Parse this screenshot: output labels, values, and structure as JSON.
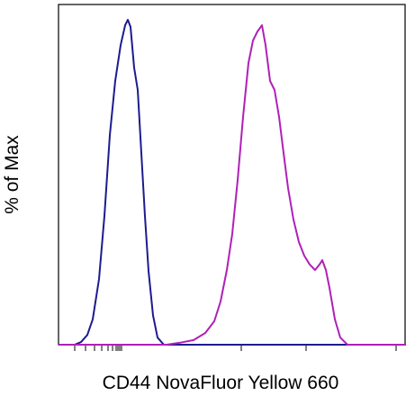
{
  "chart_data": {
    "type": "line",
    "xlabel": "CD44 NovaFluor Yellow 660",
    "ylabel": "% of Max",
    "xlim": [
      0,
      386
    ],
    "ylim": [
      0,
      100
    ],
    "xticks": [
      18,
      30,
      40,
      48,
      55,
      60,
      64,
      66,
      68,
      70,
      203,
      275,
      375
    ],
    "series": [
      {
        "color": "#1c1c8f",
        "x": [
          0,
          18,
          25,
          32,
          38,
          45,
          51,
          57,
          63,
          69,
          74,
          77,
          80,
          84,
          88,
          92,
          96,
          100,
          105,
          110,
          117,
          386
        ],
        "values": [
          0,
          0,
          0.8,
          3,
          7.8,
          20.2,
          39.6,
          64.5,
          81.2,
          92.2,
          98.3,
          100,
          97.8,
          85.3,
          78.4,
          59,
          39.6,
          22.7,
          9,
          2.2,
          0,
          0
        ]
      },
      {
        "color": "#b020b8",
        "x": [
          0,
          120,
          135,
          150,
          163,
          173,
          180,
          187,
          193,
          199,
          205,
          211,
          216,
          221,
          226,
          230,
          235,
          240,
          245,
          250,
          255,
          261,
          267,
          273,
          279,
          285,
          290,
          293,
          297,
          301,
          307,
          313,
          321,
          386
        ],
        "values": [
          0,
          0,
          0.6,
          1.4,
          3.6,
          7.2,
          13.3,
          23,
          34.1,
          50.7,
          70.1,
          86.7,
          93.6,
          96.4,
          98.3,
          92.2,
          81.2,
          78.4,
          70.1,
          59,
          48.2,
          38.5,
          31.6,
          27.4,
          24.7,
          23,
          24.7,
          26,
          23,
          17.5,
          7.8,
          2.2,
          0,
          0
        ]
      }
    ]
  }
}
